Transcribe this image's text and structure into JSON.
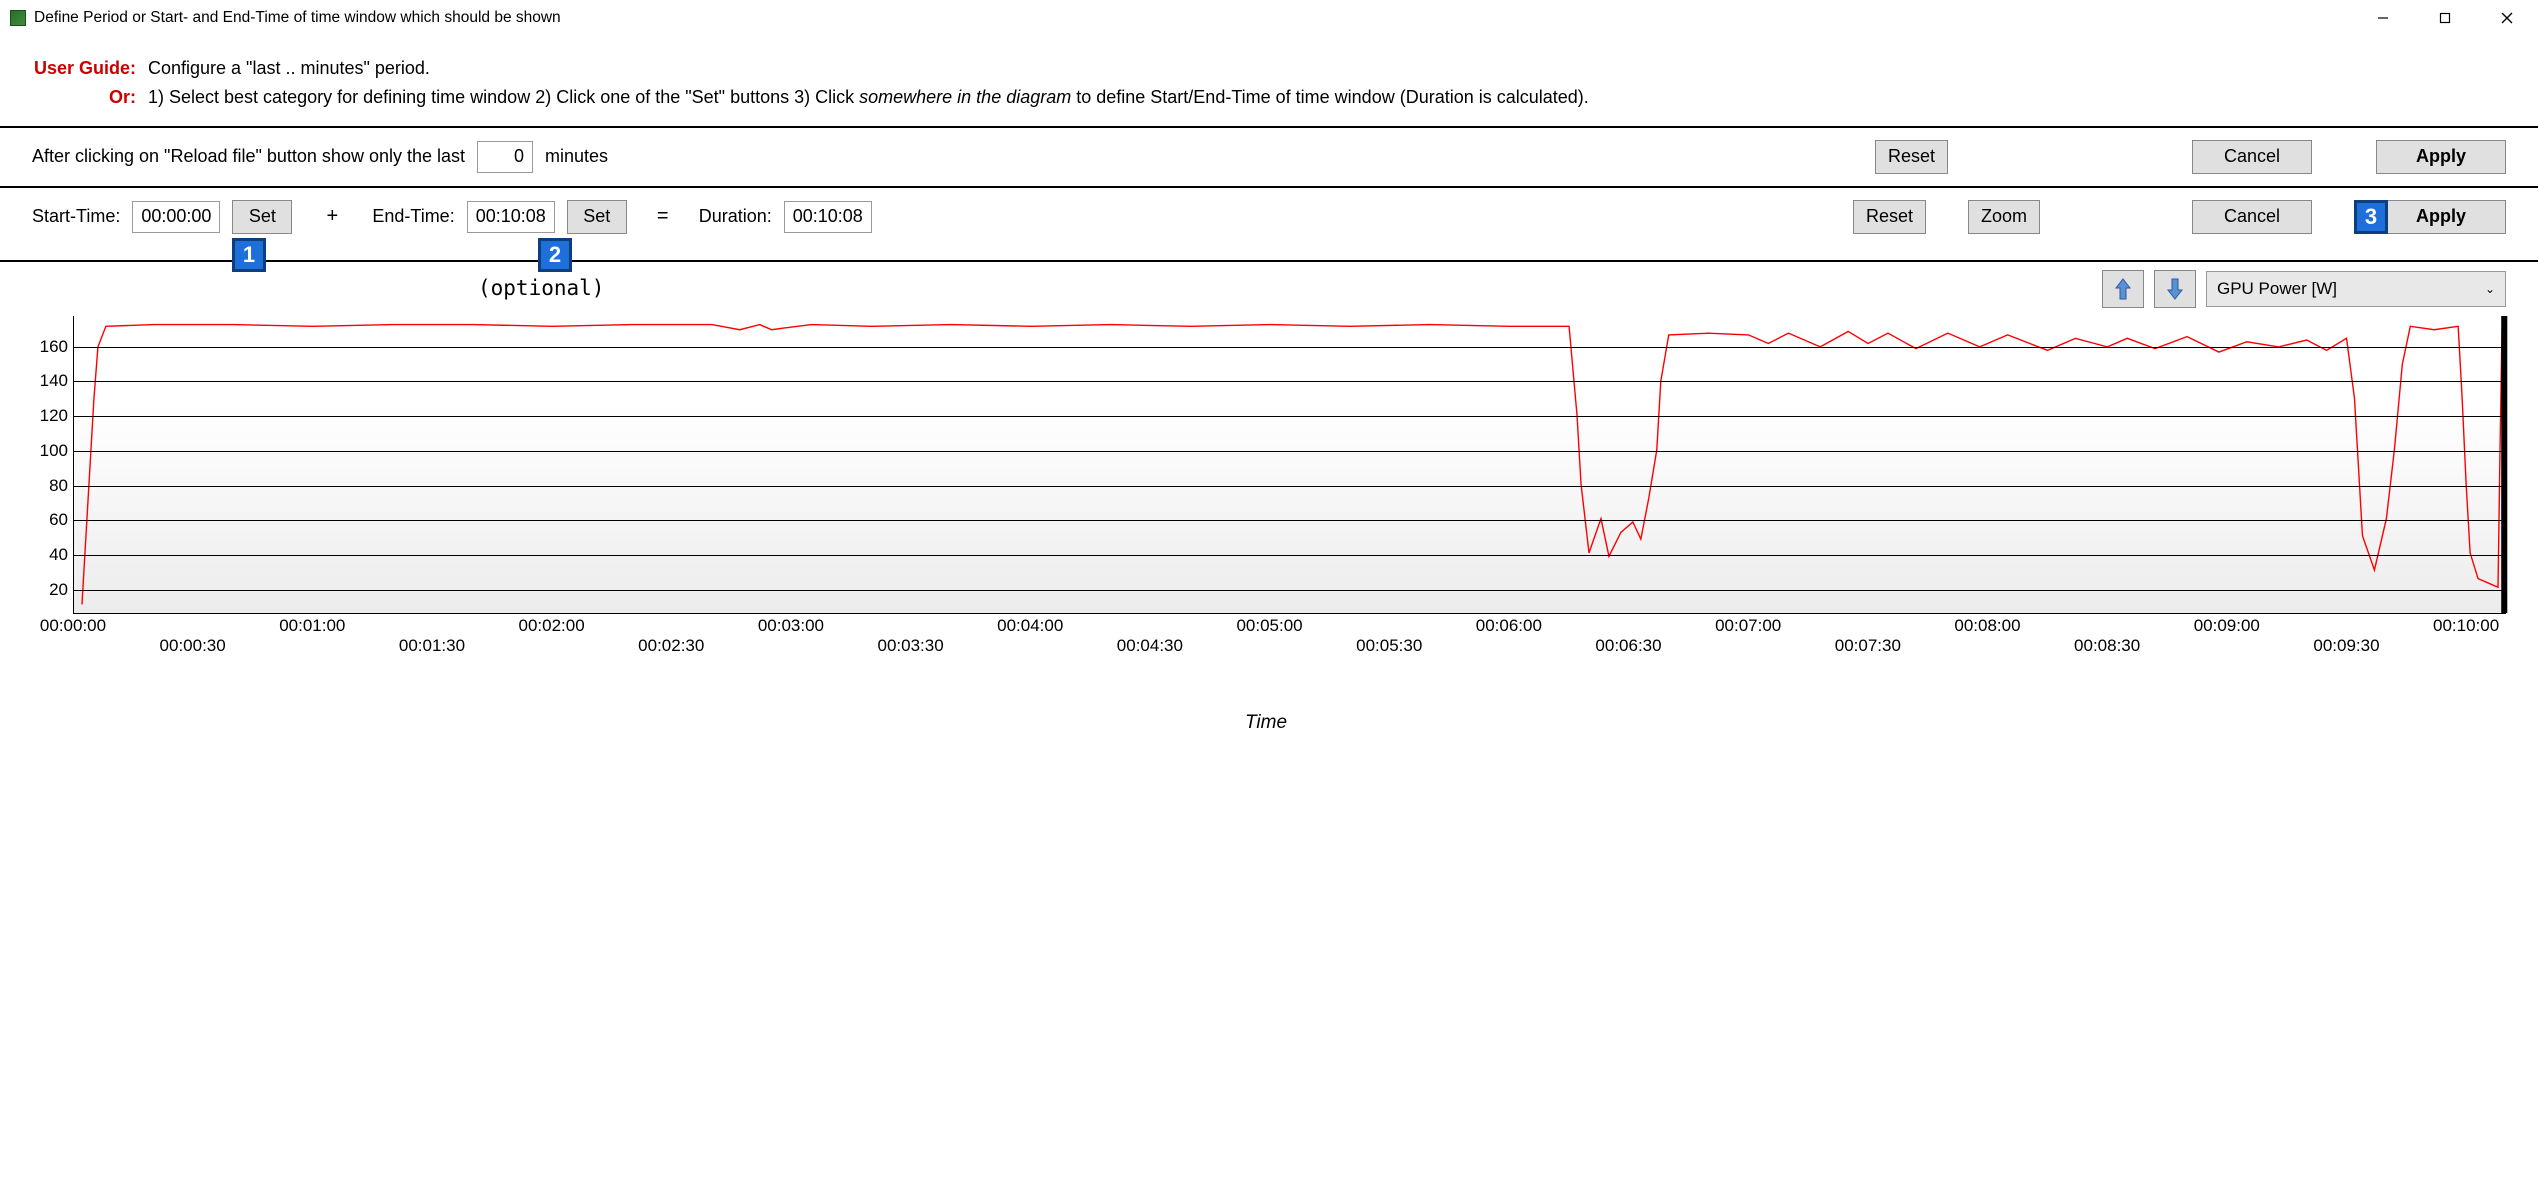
{
  "window": {
    "title": "Define Period or Start- and End-Time of time window which should be shown"
  },
  "guide": {
    "label1": "User Guide:",
    "text1": "Configure a \"last .. minutes\" period.",
    "label2": "Or:",
    "text2a": "1) Select best category for defining time window   2) Click one of the \"Set\" buttons   3) Click ",
    "text2_italic": "somewhere in the diagram",
    "text2b": " to define Start/End-Time of time window (Duration is calculated)."
  },
  "period_panel": {
    "prefix": "After clicking on \"Reload file\" button show only the last",
    "minutes_value": "0",
    "suffix": "minutes",
    "reset": "Reset",
    "cancel": "Cancel",
    "apply": "Apply"
  },
  "time_panel": {
    "start_label": "Start-Time:",
    "start_value": "00:00:00",
    "set": "Set",
    "plus": "+",
    "end_label": "End-Time:",
    "end_value": "00:10:08",
    "equals": "=",
    "duration_label": "Duration:",
    "duration_value": "00:10:08",
    "reset": "Reset",
    "zoom": "Zoom",
    "cancel": "Cancel",
    "apply": "Apply",
    "badge1": "1",
    "badge2": "2",
    "badge3": "3",
    "optional": "(optional)"
  },
  "chart_controls": {
    "metric": "GPU Power [W]"
  },
  "chart": {
    "line_color": "#ff0000",
    "line_width": 1.4,
    "bg_gradient_top": "#ffffff",
    "bg_gradient_bottom": "#ececec",
    "ylim": [
      5,
      178
    ],
    "yticks": [
      20,
      40,
      60,
      80,
      100,
      120,
      140,
      160
    ],
    "xlim": [
      0,
      610
    ],
    "xticks_major": [
      {
        "t": 0,
        "label": "00:00:00"
      },
      {
        "t": 60,
        "label": "00:01:00"
      },
      {
        "t": 120,
        "label": "00:02:00"
      },
      {
        "t": 180,
        "label": "00:03:00"
      },
      {
        "t": 240,
        "label": "00:04:00"
      },
      {
        "t": 300,
        "label": "00:05:00"
      },
      {
        "t": 360,
        "label": "00:06:00"
      },
      {
        "t": 420,
        "label": "00:07:00"
      },
      {
        "t": 480,
        "label": "00:08:00"
      },
      {
        "t": 540,
        "label": "00:09:00"
      },
      {
        "t": 600,
        "label": "00:10:00"
      }
    ],
    "xticks_minor": [
      {
        "t": 30,
        "label": "00:00:30"
      },
      {
        "t": 90,
        "label": "00:01:30"
      },
      {
        "t": 150,
        "label": "00:02:30"
      },
      {
        "t": 210,
        "label": "00:03:30"
      },
      {
        "t": 270,
        "label": "00:04:30"
      },
      {
        "t": 330,
        "label": "00:05:30"
      },
      {
        "t": 390,
        "label": "00:06:30"
      },
      {
        "t": 450,
        "label": "00:07:30"
      },
      {
        "t": 510,
        "label": "00:08:30"
      },
      {
        "t": 570,
        "label": "00:09:30"
      }
    ],
    "xlabel": "Time",
    "series": [
      [
        2,
        10
      ],
      [
        3,
        50
      ],
      [
        4,
        90
      ],
      [
        5,
        130
      ],
      [
        6,
        160
      ],
      [
        8,
        172
      ],
      [
        20,
        173
      ],
      [
        40,
        173
      ],
      [
        60,
        172
      ],
      [
        80,
        173
      ],
      [
        100,
        173
      ],
      [
        120,
        172
      ],
      [
        140,
        173
      ],
      [
        160,
        173
      ],
      [
        167,
        170
      ],
      [
        172,
        173
      ],
      [
        175,
        170
      ],
      [
        178,
        171
      ],
      [
        185,
        173
      ],
      [
        200,
        172
      ],
      [
        220,
        173
      ],
      [
        240,
        172
      ],
      [
        260,
        173
      ],
      [
        280,
        172
      ],
      [
        300,
        173
      ],
      [
        320,
        172
      ],
      [
        340,
        173
      ],
      [
        360,
        172
      ],
      [
        375,
        172
      ],
      [
        377,
        120
      ],
      [
        378,
        80
      ],
      [
        380,
        40
      ],
      [
        383,
        60
      ],
      [
        385,
        38
      ],
      [
        388,
        52
      ],
      [
        391,
        58
      ],
      [
        393,
        48
      ],
      [
        395,
        72
      ],
      [
        397,
        100
      ],
      [
        398,
        140
      ],
      [
        400,
        167
      ],
      [
        410,
        168
      ],
      [
        420,
        167
      ],
      [
        425,
        162
      ],
      [
        430,
        168
      ],
      [
        438,
        160
      ],
      [
        445,
        169
      ],
      [
        450,
        162
      ],
      [
        455,
        168
      ],
      [
        462,
        159
      ],
      [
        470,
        168
      ],
      [
        478,
        160
      ],
      [
        485,
        167
      ],
      [
        495,
        158
      ],
      [
        502,
        165
      ],
      [
        510,
        160
      ],
      [
        515,
        165
      ],
      [
        522,
        159
      ],
      [
        530,
        166
      ],
      [
        538,
        157
      ],
      [
        545,
        163
      ],
      [
        553,
        160
      ],
      [
        560,
        164
      ],
      [
        565,
        158
      ],
      [
        570,
        165
      ],
      [
        572,
        130
      ],
      [
        573,
        90
      ],
      [
        574,
        50
      ],
      [
        577,
        30
      ],
      [
        580,
        60
      ],
      [
        582,
        100
      ],
      [
        584,
        150
      ],
      [
        586,
        172
      ],
      [
        592,
        170
      ],
      [
        598,
        172
      ],
      [
        599,
        130
      ],
      [
        600,
        80
      ],
      [
        601,
        40
      ],
      [
        603,
        25
      ],
      [
        606,
        22
      ],
      [
        608,
        20
      ],
      [
        608.5,
        100
      ],
      [
        609,
        170
      ]
    ]
  }
}
